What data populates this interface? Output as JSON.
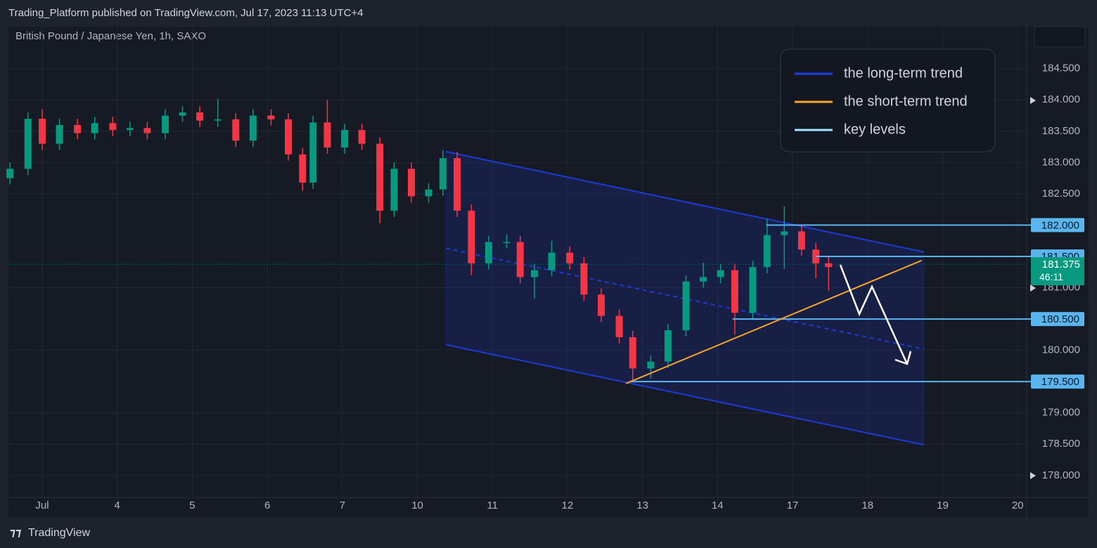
{
  "header": {
    "publisher": "Trading_Platform published on TradingView.com, Jul 17, 2023 11:13 UTC+4",
    "symbol": "British Pound / Japanese Yen, 1h, SAXO"
  },
  "chart_data": {
    "type": "candlestick",
    "color_up": "#089981",
    "color_down": "#f23645",
    "x": [
      -0.43,
      -0.19,
      0,
      0.23,
      0.47,
      0.7,
      0.94,
      1.17,
      1.4,
      1.64,
      1.87,
      2.1,
      2.34,
      2.58,
      2.81,
      3.05,
      3.28,
      3.47,
      3.61,
      3.8,
      4.03,
      4.26,
      4.5,
      4.69,
      4.92,
      5.15,
      5.34,
      5.53,
      5.72,
      5.95,
      6.19,
      6.37,
      6.56,
      6.79,
      7.03,
      7.22,
      7.45,
      7.69,
      7.87,
      8.11,
      8.34,
      8.58,
      8.81,
      9.04,
      9.23,
      9.47,
      9.66,
      9.89,
      10.12,
      10.31,
      10.48
    ],
    "open": [
      182.75,
      182.9,
      183.7,
      183.3,
      183.6,
      183.47,
      183.63,
      183.52,
      183.55,
      183.47,
      183.75,
      183.8,
      183.67,
      183.69,
      183.35,
      183.75,
      183.69,
      183.13,
      182.68,
      183.64,
      183.24,
      183.52,
      183.3,
      182.23,
      182.9,
      182.46,
      182.57,
      183.07,
      182.23,
      181.39,
      181.73,
      181.73,
      181.17,
      181.28,
      181.56,
      181.39,
      180.89,
      180.55,
      180.21,
      179.71,
      179.82,
      180.32,
      181.1,
      181.17,
      181.28,
      180.6,
      181.33,
      181.84,
      181.9,
      181.61,
      181.39
    ],
    "high": [
      183.0,
      183.8,
      183.85,
      183.7,
      183.7,
      183.73,
      183.73,
      183.65,
      183.65,
      183.85,
      183.9,
      183.9,
      184.02,
      183.79,
      183.85,
      183.85,
      183.79,
      183.23,
      183.75,
      184.0,
      183.62,
      183.62,
      183.4,
      183.0,
      183.0,
      182.67,
      183.2,
      183.17,
      182.33,
      181.83,
      181.85,
      181.83,
      181.38,
      181.75,
      181.66,
      181.49,
      180.99,
      180.65,
      180.31,
      179.92,
      180.42,
      181.2,
      181.4,
      181.38,
      181.38,
      181.43,
      182.1,
      182.3,
      182.0,
      181.71,
      181.49
    ],
    "low": [
      182.65,
      182.8,
      183.2,
      183.2,
      183.37,
      183.37,
      183.42,
      183.42,
      183.37,
      183.37,
      183.65,
      183.57,
      183.57,
      183.25,
      183.25,
      183.59,
      183.03,
      182.55,
      182.58,
      183.14,
      183.14,
      183.2,
      182.03,
      182.13,
      182.36,
      182.36,
      182.47,
      182.13,
      181.2,
      181.29,
      181.63,
      181.07,
      180.83,
      181.18,
      181.29,
      180.79,
      180.45,
      180.11,
      179.5,
      179.55,
      179.72,
      180.22,
      181.0,
      181.07,
      180.25,
      180.5,
      181.23,
      181.3,
      181.51,
      181.15,
      180.95
    ],
    "close": [
      182.9,
      183.7,
      183.3,
      183.6,
      183.47,
      183.63,
      183.52,
      183.55,
      183.47,
      183.75,
      183.8,
      183.67,
      183.69,
      183.35,
      183.75,
      183.69,
      183.13,
      182.68,
      183.64,
      183.24,
      183.52,
      183.3,
      182.23,
      182.9,
      182.46,
      182.57,
      183.07,
      182.23,
      181.39,
      181.73,
      181.73,
      181.17,
      181.28,
      181.56,
      181.39,
      180.89,
      180.55,
      180.21,
      179.71,
      179.82,
      180.32,
      181.1,
      181.17,
      181.28,
      180.6,
      181.33,
      181.84,
      181.9,
      181.61,
      181.39,
      181.33
    ],
    "xlim": [
      -0.45,
      13.12
    ],
    "xticks": [
      {
        "value": 0,
        "label": "Jul"
      },
      {
        "value": 1,
        "label": "4"
      },
      {
        "value": 2,
        "label": "5"
      },
      {
        "value": 3,
        "label": "6"
      },
      {
        "value": 4,
        "label": "7"
      },
      {
        "value": 5,
        "label": "10"
      },
      {
        "value": 6,
        "label": "11"
      },
      {
        "value": 7,
        "label": "12"
      },
      {
        "value": 8,
        "label": "13"
      },
      {
        "value": 9,
        "label": "14"
      },
      {
        "value": 10,
        "label": "17"
      },
      {
        "value": 11,
        "label": "18"
      },
      {
        "value": 12,
        "label": "19"
      },
      {
        "value": 13,
        "label": "20"
      }
    ],
    "ylim": [
      177.65,
      185.17
    ],
    "yticks": [
      {
        "value": 178,
        "label": "178.000"
      },
      {
        "value": 178.5,
        "label": "178.500"
      },
      {
        "value": 179,
        "label": "179.000"
      },
      {
        "value": 180,
        "label": "180.000"
      },
      {
        "value": 181,
        "label": "181.000"
      },
      {
        "value": 182.5,
        "label": "182.500"
      },
      {
        "value": 183,
        "label": "183.000"
      },
      {
        "value": 183.5,
        "label": "183.500"
      },
      {
        "value": 184,
        "label": "184.000"
      },
      {
        "value": 184.5,
        "label": "184.500"
      }
    ],
    "grid": true,
    "current_price": 181.375,
    "countdown": "46:11",
    "channel": {
      "x": [
        5.38,
        11.75
      ],
      "top": [
        183.175,
        181.57
      ],
      "mid": [
        181.63,
        180.02
      ],
      "bottom": [
        180.09,
        178.49
      ],
      "color": "#1e3ad6"
    },
    "trend_line": {
      "x": [
        7.78,
        11.72
      ],
      "y": [
        179.47,
        181.435
      ],
      "color": "#f7a52b"
    },
    "key_color": "#5ab4ee",
    "key_levels": [
      {
        "value": 182,
        "label": "182.000",
        "start": 9.65
      },
      {
        "value": 181.5,
        "label": "181.500",
        "start": 10.31
      },
      {
        "value": 180.5,
        "label": "180.500",
        "start": 9.2
      },
      {
        "value": 179.5,
        "label": "179.500",
        "start": 7.84
      }
    ],
    "legend": [
      {
        "name": "the long-term trend",
        "color": "#1b3ee0"
      },
      {
        "name": "the short-term trend",
        "color": "#f7a52b"
      },
      {
        "name": "key levels",
        "color": "#a6e4ff"
      }
    ]
  },
  "footer": {
    "brand": "TradingView"
  }
}
